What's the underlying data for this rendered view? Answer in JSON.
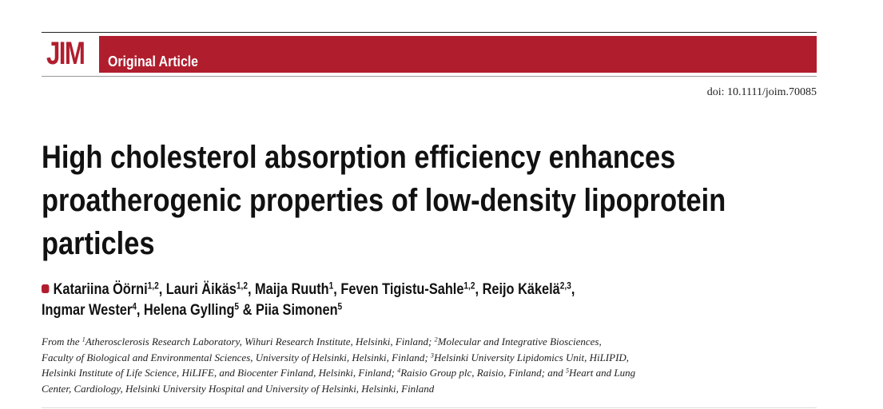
{
  "journal": {
    "logo_text": "JIM",
    "article_type": "Original Article",
    "brand_color": "#b01e2e"
  },
  "doi": "doi: 10.1111/joim.70085",
  "title_lines": [
    "High cholesterol absorption efficiency enhances",
    "proatherogenic properties of low-density lipoprotein",
    "particles"
  ],
  "authors": [
    {
      "name": "Katariina Öörni",
      "affil": "1,2",
      "sep": ", "
    },
    {
      "name": "Lauri Äikäs",
      "affil": "1,2",
      "sep": ", "
    },
    {
      "name": "Maija Ruuth",
      "affil": "1",
      "sep": ", "
    },
    {
      "name": "Feven Tigistu-Sahle",
      "affil": "1,2",
      "sep": ", "
    },
    {
      "name": "Reijo Käkelä",
      "affil": "2,3",
      "sep": ","
    },
    {
      "name": "Ingmar Wester",
      "affil": "4",
      "sep": ", "
    },
    {
      "name": "Helena Gylling",
      "affil": "5",
      "sep": " & "
    },
    {
      "name": "Piia Simonen",
      "affil": "5",
      "sep": ""
    }
  ],
  "affiliations_lines": [
    [
      {
        "t": "From the "
      },
      {
        "s": "1"
      },
      {
        "t": "Atherosclerosis Research Laboratory, Wihuri Research Institute, Helsinki, Finland; "
      },
      {
        "s": "2"
      },
      {
        "t": "Molecular and Integrative Biosciences,"
      }
    ],
    [
      {
        "t": "Faculty of Biological and Environmental Sciences, University of Helsinki, Helsinki, Finland; "
      },
      {
        "s": "3"
      },
      {
        "t": "Helsinki University Lipidomics Unit, HiLIPID,"
      }
    ],
    [
      {
        "t": "Helsinki Institute of Life Science, HiLIFE, and Biocenter Finland, Helsinki, Finland; "
      },
      {
        "s": "4"
      },
      {
        "t": "Raisio Group plc, Raisio, Finland; and "
      },
      {
        "s": "5"
      },
      {
        "t": "Heart and Lung"
      }
    ],
    [
      {
        "t": "Center, Cardiology, Helsinki University Hospital and University of Helsinki, Helsinki, Finland"
      }
    ]
  ]
}
